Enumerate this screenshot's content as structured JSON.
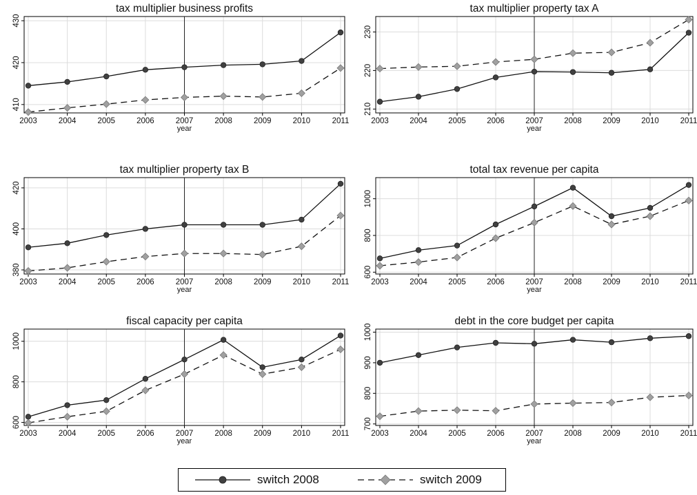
{
  "legend": {
    "position": "bottom-center",
    "entries": [
      {
        "label": "switch 2008",
        "color": "#404040",
        "marker": "circle",
        "dash": "solid"
      },
      {
        "label": "switch 2009",
        "color": "#a0a0a0",
        "marker": "diamond",
        "dash": "dashed"
      }
    ]
  },
  "chart_data": [
    {
      "type": "line",
      "title": "tax multiplier business profits",
      "xlabel": "year",
      "x": [
        2003,
        2004,
        2005,
        2006,
        2007,
        2008,
        2009,
        2010,
        2011
      ],
      "xticks": [
        2003,
        2004,
        2005,
        2006,
        2007,
        2008,
        2009,
        2010,
        2011
      ],
      "yticks": [
        410,
        420,
        430
      ],
      "ylim": [
        408,
        431
      ],
      "vline": 2007,
      "grid": true,
      "series": [
        {
          "name": "switch 2008",
          "values": [
            414.5,
            415.4,
            416.7,
            418.3,
            418.9,
            419.4,
            419.6,
            420.4,
            427.2
          ]
        },
        {
          "name": "switch 2009",
          "values": [
            408.2,
            409.2,
            410.1,
            411.1,
            411.7,
            412.0,
            411.8,
            412.7,
            418.7
          ]
        }
      ]
    },
    {
      "type": "line",
      "title": "tax multiplier property tax A",
      "xlabel": "year",
      "x": [
        2003,
        2004,
        2005,
        2006,
        2007,
        2008,
        2009,
        2010,
        2011
      ],
      "xticks": [
        2003,
        2004,
        2005,
        2006,
        2007,
        2008,
        2009,
        2010,
        2011
      ],
      "yticks": [
        210,
        220,
        230
      ],
      "ylim": [
        209,
        234
      ],
      "vline": 2007,
      "grid": true,
      "series": [
        {
          "name": "switch 2008",
          "values": [
            211.9,
            213.2,
            215.2,
            218.2,
            219.7,
            219.6,
            219.4,
            220.3,
            229.8
          ]
        },
        {
          "name": "switch 2009",
          "values": [
            220.5,
            220.9,
            221.1,
            222.2,
            222.9,
            224.5,
            224.7,
            227.2,
            233.2
          ]
        }
      ]
    },
    {
      "type": "line",
      "title": "tax multiplier property tax B",
      "xlabel": "year",
      "x": [
        2003,
        2004,
        2005,
        2006,
        2007,
        2008,
        2009,
        2010,
        2011
      ],
      "xticks": [
        2003,
        2004,
        2005,
        2006,
        2007,
        2008,
        2009,
        2010,
        2011
      ],
      "yticks": [
        380,
        400,
        420
      ],
      "ylim": [
        378,
        425
      ],
      "vline": 2007,
      "grid": true,
      "series": [
        {
          "name": "switch 2008",
          "values": [
            391,
            393,
            397,
            400,
            402,
            402,
            402,
            404.5,
            422
          ]
        },
        {
          "name": "switch 2009",
          "values": [
            379.5,
            381,
            384,
            386.5,
            388,
            388,
            387.5,
            391.5,
            406.5
          ]
        }
      ]
    },
    {
      "type": "line",
      "title": "total tax revenue per capita",
      "xlabel": "year",
      "x": [
        2003,
        2004,
        2005,
        2006,
        2007,
        2008,
        2009,
        2010,
        2011
      ],
      "xticks": [
        2003,
        2004,
        2005,
        2006,
        2007,
        2008,
        2009,
        2010,
        2011
      ],
      "yticks": [
        600,
        800,
        1000
      ],
      "ylim": [
        590,
        1115
      ],
      "vline": 2007,
      "grid": true,
      "series": [
        {
          "name": "switch 2008",
          "values": [
            675,
            720,
            745,
            860,
            958,
            1060,
            905,
            950,
            1075
          ]
        },
        {
          "name": "switch 2009",
          "values": [
            635,
            655,
            680,
            785,
            870,
            960,
            860,
            905,
            990
          ]
        }
      ]
    },
    {
      "type": "line",
      "title": "fiscal capacity per capita",
      "xlabel": "year",
      "x": [
        2003,
        2004,
        2005,
        2006,
        2007,
        2008,
        2009,
        2010,
        2011
      ],
      "xticks": [
        2003,
        2004,
        2005,
        2006,
        2007,
        2008,
        2009,
        2010,
        2011
      ],
      "yticks": [
        600,
        800,
        1000
      ],
      "ylim": [
        585,
        1060
      ],
      "vline": 2007,
      "grid": true,
      "series": [
        {
          "name": "switch 2008",
          "values": [
            628,
            685,
            710,
            815,
            910,
            1007,
            872,
            910,
            1028
          ]
        },
        {
          "name": "switch 2009",
          "values": [
            598,
            628,
            655,
            758,
            838,
            932,
            838,
            872,
            960
          ]
        }
      ]
    },
    {
      "type": "line",
      "title": "debt in the core budget per capita",
      "xlabel": "year",
      "x": [
        2003,
        2004,
        2005,
        2006,
        2007,
        2008,
        2009,
        2010,
        2011
      ],
      "xticks": [
        2003,
        2004,
        2005,
        2006,
        2007,
        2008,
        2009,
        2010,
        2011
      ],
      "yticks": [
        700,
        800,
        900,
        1000
      ],
      "ylim": [
        695,
        1010
      ],
      "vline": 2007,
      "grid": true,
      "series": [
        {
          "name": "switch 2008",
          "values": [
            900,
            925,
            950,
            965,
            962,
            975,
            967,
            980,
            987
          ]
        },
        {
          "name": "switch 2009",
          "values": [
            725,
            742,
            745,
            743,
            765,
            768,
            770,
            787,
            793
          ]
        }
      ]
    }
  ]
}
